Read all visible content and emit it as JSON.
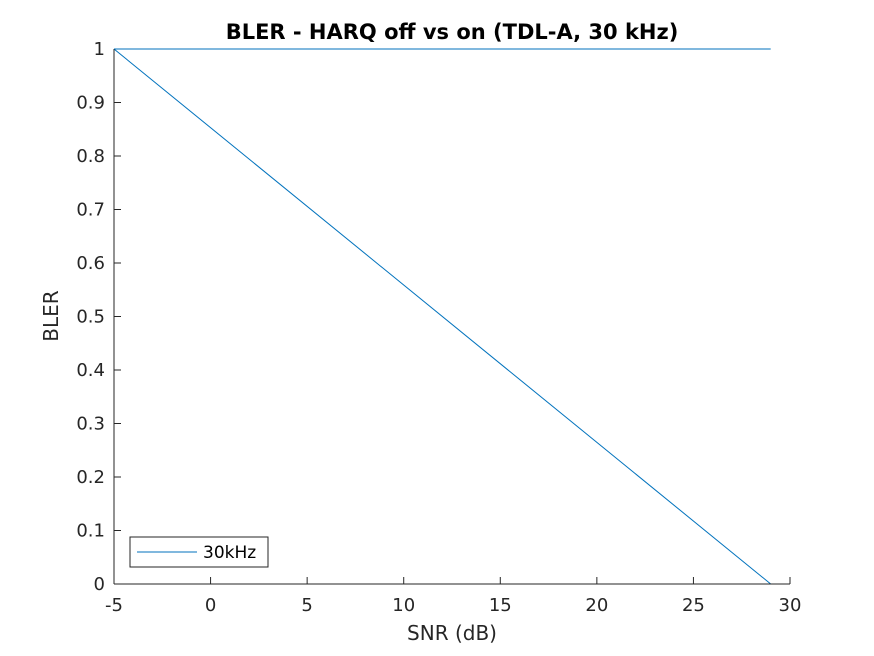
{
  "chart_data": {
    "type": "line",
    "title": "BLER - HARQ off vs on (TDL-A, 30 kHz)",
    "xlabel": "SNR (dB)",
    "ylabel": "BLER",
    "xlim": [
      -5,
      30
    ],
    "ylim": [
      0,
      1
    ],
    "xticks": [
      -5,
      0,
      5,
      10,
      15,
      20,
      25,
      30
    ],
    "yticks": [
      0,
      0.1,
      0.2,
      0.3,
      0.4,
      0.5,
      0.6,
      0.7,
      0.8,
      0.9,
      1
    ],
    "xtick_labels": [
      "-5",
      "0",
      "5",
      "10",
      "15",
      "20",
      "25",
      "30"
    ],
    "ytick_labels": [
      "0",
      "0.1",
      "0.2",
      "0.3",
      "0.4",
      "0.5",
      "0.6",
      "0.7",
      "0.8",
      "0.9",
      "1"
    ],
    "grid": false,
    "legend_position": "bottom-left",
    "series": [
      {
        "name": "30kHz",
        "color": "#0072bd",
        "x": [
          -5,
          29
        ],
        "y": [
          1,
          0
        ]
      },
      {
        "color": "#0072bd",
        "x": [
          -5,
          29
        ],
        "y": [
          1,
          1
        ]
      },
      {
        "color": "#0072bd",
        "x": [
          -5,
          29
        ],
        "y": [
          0,
          0
        ]
      }
    ]
  }
}
